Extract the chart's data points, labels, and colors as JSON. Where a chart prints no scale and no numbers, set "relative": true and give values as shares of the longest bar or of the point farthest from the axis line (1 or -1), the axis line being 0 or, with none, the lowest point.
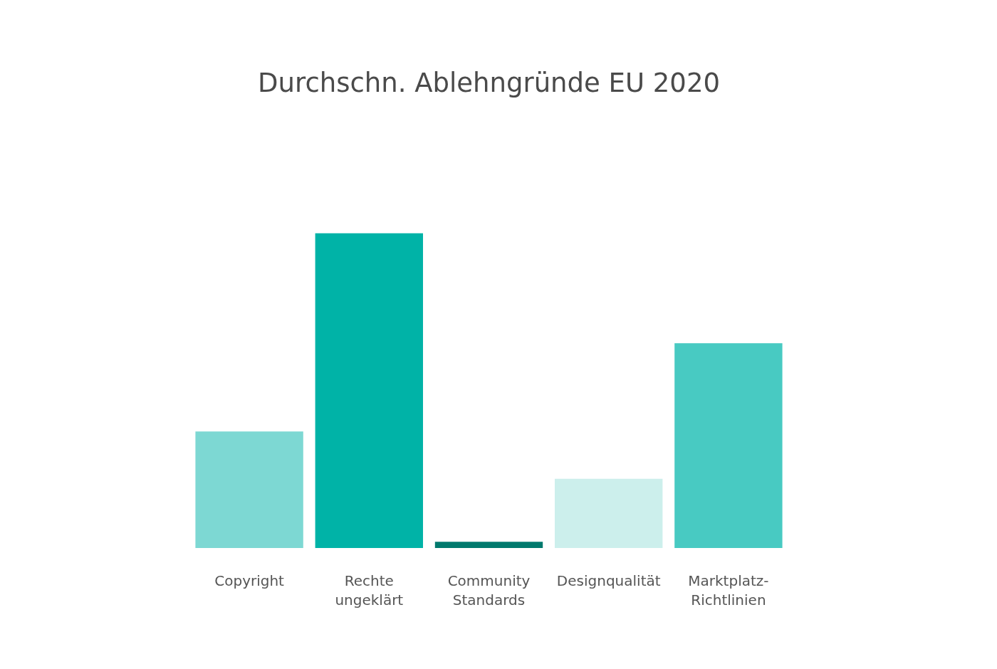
{
  "chart_data": {
    "type": "bar",
    "title": "Durchschn. Ablehngründe EU 2020",
    "categories": [
      "Copyright",
      "Rechte ungeklärt",
      "Community Standards",
      "Designqualität",
      "Marktplatz-Richtlinien"
    ],
    "values": [
      0.37,
      1,
      0.02,
      0.22,
      0.65
    ],
    "colors": [
      "#7dd8d3",
      "#00b3a7",
      "#00796d",
      "#ccefec",
      "#48cac2"
    ],
    "relative": true
  }
}
